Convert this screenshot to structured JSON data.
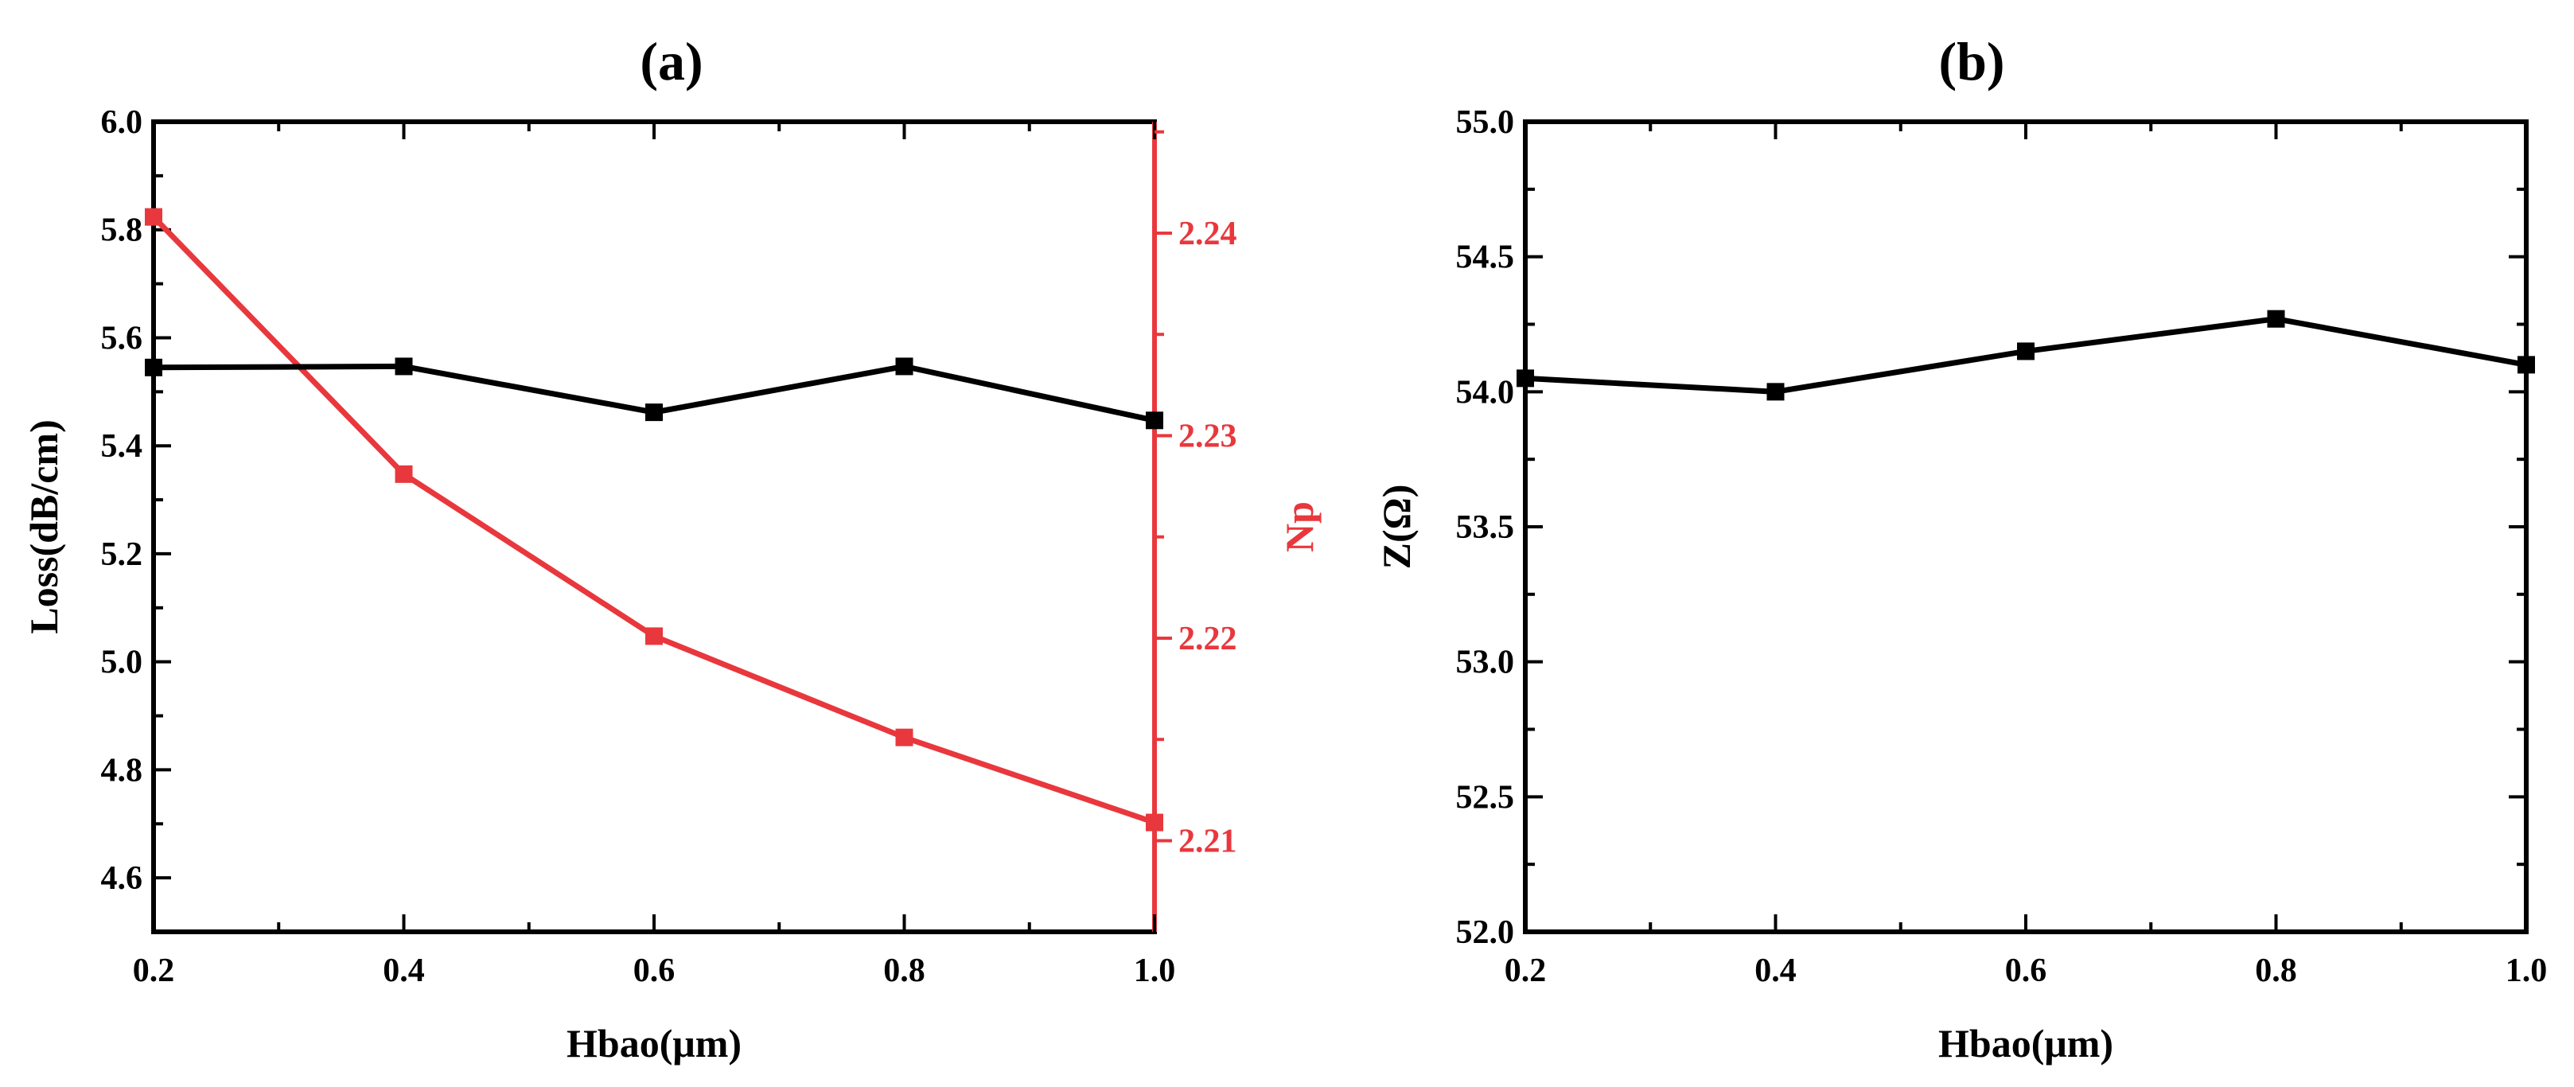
{
  "chart_data": [
    {
      "type": "line",
      "panel_label": "(a)",
      "xlabel": "Hbao(μm)",
      "ylabel": "Loss(dB/cm)",
      "y2label": "Np",
      "x": [
        0.2,
        0.4,
        0.6,
        0.8,
        1.0
      ],
      "xlim": [
        0.2,
        1.0
      ],
      "ylim": [
        4.5,
        6.0
      ],
      "y2lim": [
        2.2055,
        2.2455
      ],
      "xticks": [
        "0.2",
        "0.4",
        "0.6",
        "0.8",
        "1.0"
      ],
      "yticks": [
        "4.6",
        "4.8",
        "5.0",
        "5.2",
        "5.4",
        "5.6",
        "5.8",
        "6.0"
      ],
      "y2ticks": [
        "2.21",
        "2.22",
        "2.23",
        "2.24"
      ],
      "grid": false,
      "series": [
        {
          "axis": "left",
          "color": "#000000",
          "marker": "square",
          "values": [
            5.545,
            5.547,
            5.462,
            5.547,
            5.447
          ]
        },
        {
          "axis": "right",
          "color": "#e8383d",
          "marker": "square",
          "values": [
            2.2408,
            2.2281,
            2.2201,
            2.2151,
            2.2109
          ]
        }
      ]
    },
    {
      "type": "line",
      "panel_label": "(b)",
      "xlabel": "Hbao(μm)",
      "ylabel": "Z(Ω)",
      "x": [
        0.2,
        0.4,
        0.6,
        0.8,
        1.0
      ],
      "xlim": [
        0.2,
        1.0
      ],
      "ylim": [
        52.0,
        55.0
      ],
      "xticks": [
        "0.2",
        "0.4",
        "0.6",
        "0.8",
        "1.0"
      ],
      "yticks": [
        "52.0",
        "52.5",
        "53.0",
        "53.5",
        "54.0",
        "54.5",
        "55.0"
      ],
      "grid": false,
      "series": [
        {
          "axis": "left",
          "color": "#000000",
          "marker": "square",
          "values": [
            54.05,
            54.0,
            54.15,
            54.27,
            54.1
          ]
        }
      ]
    }
  ]
}
